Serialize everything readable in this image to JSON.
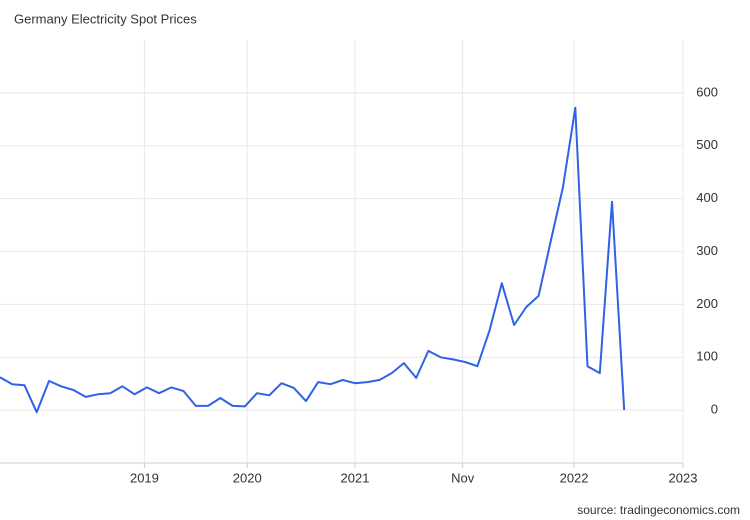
{
  "chart_data": {
    "type": "line",
    "title": "Germany Electricity Spot Prices",
    "source": "source: tradingeconomics.com",
    "x": [
      0,
      1,
      2,
      3,
      4,
      5,
      6,
      7,
      8,
      9,
      10,
      11,
      12,
      13,
      14,
      15,
      16,
      17,
      18,
      19,
      20,
      21,
      22,
      23,
      24,
      25,
      26,
      27,
      28,
      29,
      30,
      31,
      32,
      33,
      34,
      35,
      36,
      37,
      38,
      39,
      40,
      41,
      42,
      43,
      44,
      45,
      46,
      47,
      48,
      49,
      50,
      51
    ],
    "series": [
      {
        "name": "Germany Electricity Spot Prices",
        "color": "#2f62e6",
        "values": [
          62,
          49,
          47,
          -4,
          55,
          45,
          38,
          25,
          30,
          32,
          45,
          30,
          43,
          32,
          43,
          36,
          8,
          8,
          23,
          8,
          7,
          32,
          28,
          51,
          42,
          17,
          53,
          49,
          57,
          51,
          53,
          57,
          70,
          89,
          61,
          112,
          100,
          96,
          91,
          83,
          151,
          240,
          161,
          195,
          216,
          320,
          422,
          572,
          83,
          70,
          394,
          0
        ]
      }
    ],
    "xlim": [
      0,
      55.8
    ],
    "xticks": [
      {
        "value": 11.8,
        "label": "2019"
      },
      {
        "value": 20.2,
        "label": "2020"
      },
      {
        "value": 29,
        "label": "2021"
      },
      {
        "value": 37.8,
        "label": "Nov"
      },
      {
        "value": 46.9,
        "label": "2022"
      },
      {
        "value": 55.8,
        "label": "2023"
      }
    ],
    "ylim": [
      -100,
      700
    ],
    "yticks": [
      0,
      100,
      200,
      300,
      400,
      500,
      600
    ],
    "grid": true
  }
}
